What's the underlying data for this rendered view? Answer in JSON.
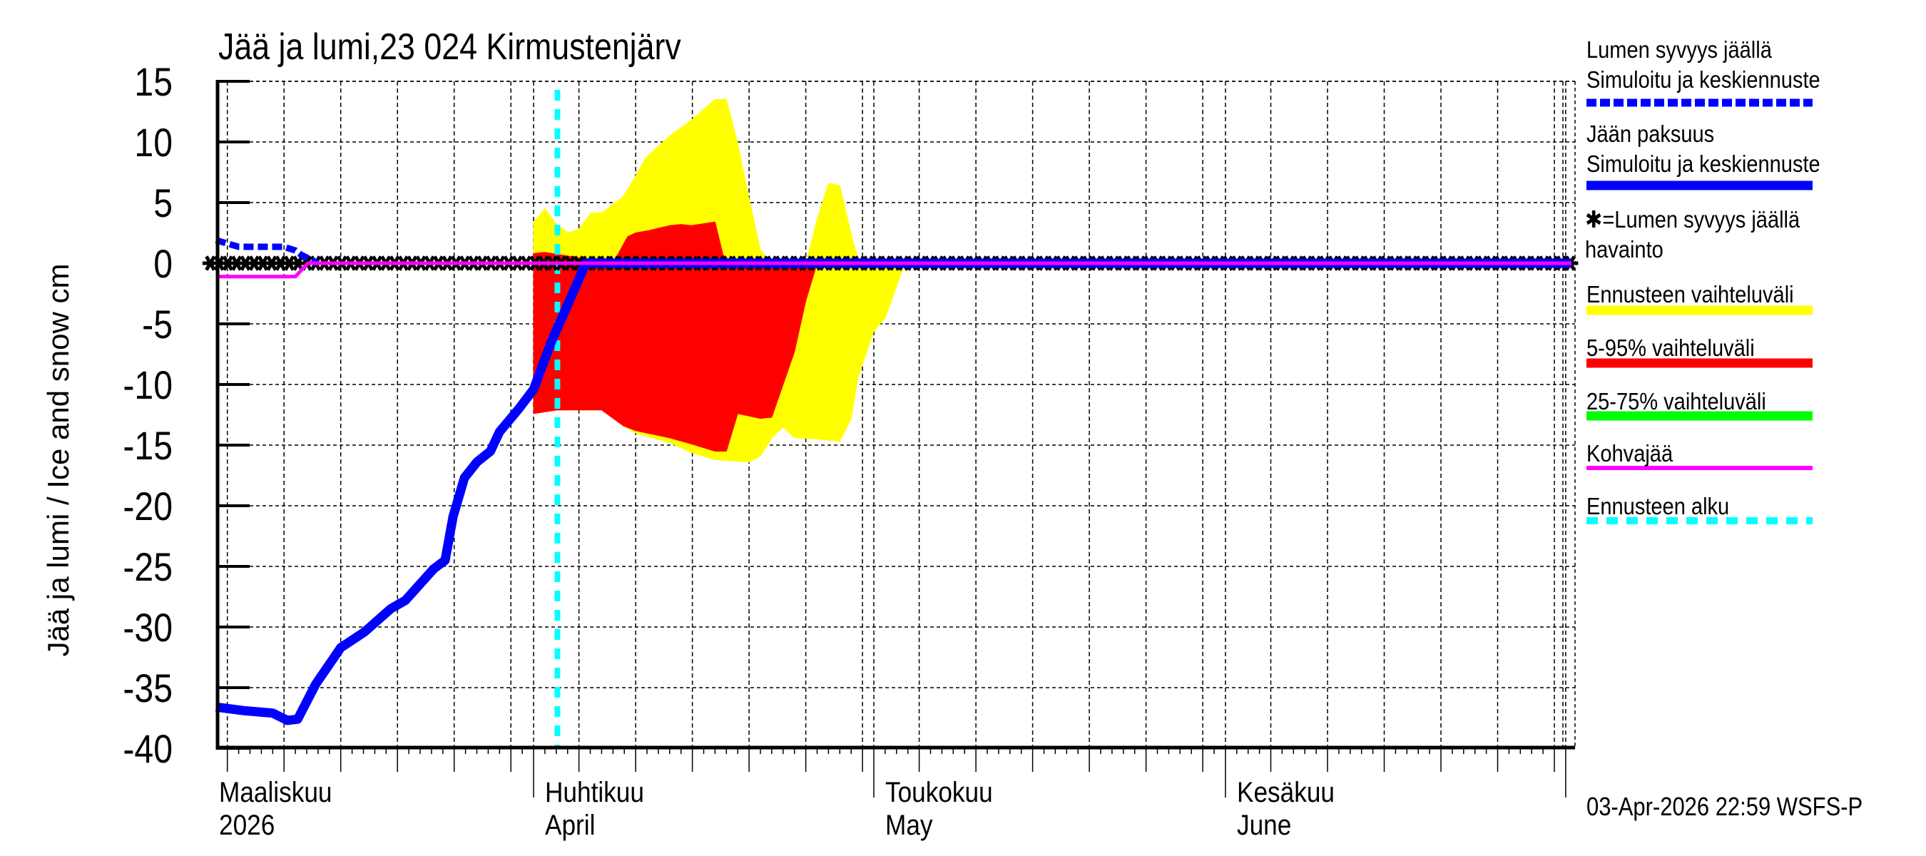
{
  "title": "Jää ja lumi,23 024 Kirmustenjärv",
  "footer_timestamp": "03-Apr-2026 22:59 WSFS-P",
  "colors": {
    "snow_line": "#0000ff",
    "ice_line": "#0000ff",
    "observation": "#000000",
    "forecast_range": "#ffff00",
    "range_5_95": "#ff0000",
    "range_25_75": "#00ff00",
    "kohvajaa": "#ff00ff",
    "forecast_start": "#00ffff"
  },
  "legend": [
    {
      "line1": "Lumen syvyys jäällä",
      "line2": "Simuloitu ja keskiennuste",
      "style": "dashed-thick",
      "color": "#0000ff"
    },
    {
      "line1": "Jään paksuus",
      "line2": "Simuloitu ja keskiennuste",
      "style": "solid-thick",
      "color": "#0000ff"
    },
    {
      "line1": "✱=Lumen syvyys jäällä",
      "line2": "havainto",
      "style": "marker",
      "color": "#000000"
    },
    {
      "line1": "Ennusteen vaihteluväli",
      "line2": "",
      "style": "band",
      "color": "#ffff00"
    },
    {
      "line1": "5-95% vaihteluväli",
      "line2": "",
      "style": "band",
      "color": "#ff0000"
    },
    {
      "line1": "25-75% vaihteluväli",
      "line2": "",
      "style": "band",
      "color": "#00ff00"
    },
    {
      "line1": "Kohvajää",
      "line2": "",
      "style": "line",
      "color": "#ff00ff"
    },
    {
      "line1": "Ennusteen alku",
      "line2": "",
      "style": "dashed-thick",
      "color": "#00ffff"
    }
  ],
  "x_axis": {
    "months": [
      {
        "fi": "Maaliskuu",
        "en": "2026",
        "day": -31
      },
      {
        "fi": "Huhtikuu",
        "en": "April",
        "day": 0
      },
      {
        "fi": "Toukokuu",
        "en": "May",
        "day": 30
      },
      {
        "fi": "Kesäkuu",
        "en": "June",
        "day": 61
      }
    ]
  },
  "chart_data": {
    "type": "area",
    "title": "Jää ja lumi,23 024 Kirmustenjärv",
    "xlabel": "",
    "ylabel": "Jää ja lumi / Ice and snow   cm",
    "x_unit": "days relative to 1-Apr-2026",
    "xlim": [
      -28,
      91.5
    ],
    "ylim": [
      -40,
      15
    ],
    "yticks": [
      15,
      10,
      5,
      0,
      -5,
      -10,
      -15,
      -20,
      -25,
      -30,
      -35,
      -40
    ],
    "grid": true,
    "forecast_start_day": 2.1,
    "series": [
      {
        "name": "Lumen syvyys jäällä – Simuloitu ja keskiennuste",
        "style": "dashed",
        "x": [
          -28,
          -26,
          -24,
          -22,
          -21,
          -20.5,
          -19
        ],
        "y": [
          1.9,
          1.35,
          1.35,
          1.35,
          1.05,
          0.7,
          0
        ]
      },
      {
        "name": "Jään paksuus – Simuloitu ja keskiennuste",
        "style": "solid",
        "x": [
          -28,
          -25.5,
          -23,
          -21.7,
          -20.8,
          -19.2,
          -17,
          -14.9,
          -12.6,
          -11.3,
          -8.8,
          -7.8,
          -7.1,
          -6.1,
          -5.0,
          -3.8,
          -3.0,
          -1.3,
          0,
          1.6,
          3.3,
          4.6,
          91.5
        ],
        "y": [
          -36.6,
          -36.9,
          -37.1,
          -37.7,
          -37.6,
          -34.7,
          -31.7,
          -30.4,
          -28.5,
          -27.8,
          -25.2,
          -24.5,
          -20.9,
          -17.7,
          -16.4,
          -15.5,
          -13.9,
          -12.0,
          -10.4,
          -6.4,
          -2.8,
          0,
          0
        ]
      },
      {
        "name": "Kohvajää",
        "style": "solid",
        "x": [
          -28,
          -21,
          -19.9,
          91.5
        ],
        "y": [
          -1.1,
          -1.1,
          0,
          0
        ]
      },
      {
        "name": "Lumen syvyys jäällä havainto",
        "style": "markers",
        "x_range": [
          -28.5,
          91.5
        ],
        "y": 0
      }
    ],
    "bands": [
      {
        "name": "Ennusteen vaihteluväli",
        "upper": {
          "x": [
            0,
            1,
            2,
            3.1,
            4,
            5,
            6.1,
            7.9,
            9,
            9.9,
            12,
            13.9,
            16,
            17,
            18,
            19,
            20,
            21,
            24,
            25,
            26,
            27,
            28,
            28.7,
            29.5
          ],
          "y": [
            3.4,
            4.5,
            3.2,
            2.5,
            2.8,
            4.1,
            4.2,
            5.5,
            7.2,
            8.7,
            10.5,
            11.8,
            13.5,
            13.5,
            9.9,
            5.3,
            1.1,
            0,
            0,
            3.6,
            6.6,
            6.4,
            2.4,
            0,
            0
          ]
        },
        "lower": {
          "x": [
            0,
            2.1,
            6.0,
            7.9,
            9,
            12,
            13.9,
            16,
            19,
            20,
            21,
            22,
            23,
            25,
            27,
            28,
            28.6,
            30,
            31,
            32.5,
            33
          ],
          "y": [
            -12.4,
            -12.1,
            -12.1,
            -13.4,
            -14.0,
            -14.8,
            -15.6,
            -16.2,
            -16.4,
            -15.9,
            -14.4,
            -13.5,
            -14.4,
            -14.5,
            -14.7,
            -12.8,
            -9.4,
            -5.6,
            -4.5,
            -0.6,
            0
          ]
        }
      },
      {
        "name": "5-95% vaihteluväli",
        "upper": {
          "x": [
            0,
            1,
            7,
            8.3,
            9,
            10.2,
            12,
            13,
            13.9,
            16,
            16.7,
            17.5
          ],
          "y": [
            0.8,
            0.9,
            0,
            2.2,
            2.5,
            2.7,
            3.1,
            3.2,
            3.1,
            3.4,
            0.7,
            0
          ]
        },
        "lower": {
          "x": [
            0,
            2.1,
            6.0,
            7.9,
            9,
            12,
            13.9,
            16,
            17,
            18,
            20,
            21,
            23,
            24,
            25
          ],
          "y": [
            -12.4,
            -12.1,
            -12.1,
            -13.4,
            -13.8,
            -14.4,
            -14.9,
            -15.5,
            -15.5,
            -12.4,
            -12.8,
            -12.7,
            -7.3,
            -3.1,
            0
          ]
        }
      },
      {
        "name": "25-75% vaihteluväli",
        "upper": {
          "x": [],
          "y": []
        },
        "lower": {
          "x": [],
          "y": []
        }
      }
    ]
  }
}
